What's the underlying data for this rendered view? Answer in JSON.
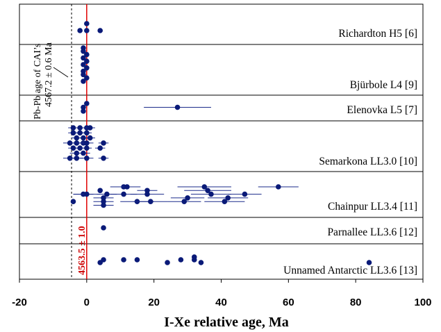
{
  "colors": {
    "points": "#0a1a78",
    "errorbars": "#1a2a8a",
    "refline": "#e00000",
    "divider": "#000000"
  },
  "chart_data": {
    "type": "scatter",
    "title": "",
    "xlabel": "I-Xe  relative age, Ma",
    "ylabel": "",
    "xlim": [
      -20,
      100
    ],
    "xticks": [
      -20,
      0,
      20,
      40,
      60,
      80,
      100
    ],
    "xtick_labels": [
      "-20",
      "0",
      "20",
      "40",
      "60",
      "80",
      "100"
    ],
    "grid": false,
    "reference_lines": [
      {
        "x": -4.5,
        "style": "dashed",
        "label_line1": "Pb-Pb age of CAI’s",
        "label_line2": "4567.2 ± 0.6 Ma"
      },
      {
        "x": 0,
        "style": "solid",
        "label": "4563.5 ± 1.0"
      }
    ],
    "series": [
      {
        "name": "Richardton H5 [6]",
        "points": [
          {
            "x": 0,
            "y": 1,
            "err": 0
          },
          {
            "x": -2,
            "y": 2,
            "err": 0
          },
          {
            "x": 0,
            "y": 2,
            "err": 0
          },
          {
            "x": 4,
            "y": 2,
            "err": 0
          }
        ]
      },
      {
        "name": "Bjürbole  L4 [9]",
        "points": [
          {
            "x": -1,
            "y": 1,
            "err": 0
          },
          {
            "x": -1,
            "y": 2,
            "err": 0
          },
          {
            "x": 0,
            "y": 3,
            "err": 0
          },
          {
            "x": -1,
            "y": 4,
            "err": 0
          },
          {
            "x": 0,
            "y": 5,
            "err": 0
          },
          {
            "x": -1,
            "y": 6,
            "err": 0
          },
          {
            "x": 0,
            "y": 7,
            "err": 0
          },
          {
            "x": -1,
            "y": 8,
            "err": 0
          },
          {
            "x": -1,
            "y": 9,
            "err": 0
          },
          {
            "x": 0,
            "y": 10,
            "err": 0
          },
          {
            "x": -1,
            "y": 11,
            "err": 0
          }
        ]
      },
      {
        "name": "Elenovka L5 [7]",
        "points": [
          {
            "x": 0,
            "y": 1,
            "err": 0
          },
          {
            "x": -1,
            "y": 2,
            "err": 0
          },
          {
            "x": 27,
            "y": 2,
            "err": 10
          },
          {
            "x": -1,
            "y": 3,
            "err": 0
          }
        ]
      },
      {
        "name": "Semarkona LL3.0 [10]",
        "points": [
          {
            "x": -4,
            "y": 1,
            "err": 1.5
          },
          {
            "x": -2,
            "y": 1,
            "err": 1.5
          },
          {
            "x": 0,
            "y": 1,
            "err": 1.5
          },
          {
            "x": 1,
            "y": 1,
            "err": 1.5
          },
          {
            "x": -4,
            "y": 2,
            "err": 1.5
          },
          {
            "x": -2,
            "y": 2,
            "err": 1.5
          },
          {
            "x": 0,
            "y": 2,
            "err": 1.5
          },
          {
            "x": -3,
            "y": 3,
            "err": 1.5
          },
          {
            "x": -1,
            "y": 3,
            "err": 1.5
          },
          {
            "x": 1,
            "y": 3,
            "err": 1.5
          },
          {
            "x": -5,
            "y": 4,
            "err": 2
          },
          {
            "x": -3,
            "y": 4,
            "err": 2
          },
          {
            "x": -1,
            "y": 4,
            "err": 2
          },
          {
            "x": 0,
            "y": 4,
            "err": 2
          },
          {
            "x": 5,
            "y": 4,
            "err": 1.5
          },
          {
            "x": -4,
            "y": 5,
            "err": 1.5
          },
          {
            "x": -2,
            "y": 5,
            "err": 1.5
          },
          {
            "x": 0,
            "y": 5,
            "err": 1.5
          },
          {
            "x": 4,
            "y": 5,
            "err": 1.5
          },
          {
            "x": -3,
            "y": 6,
            "err": 2
          },
          {
            "x": -1,
            "y": 6,
            "err": 2
          },
          {
            "x": -5,
            "y": 7,
            "err": 2
          },
          {
            "x": -3,
            "y": 7,
            "err": 2
          },
          {
            "x": 0,
            "y": 7,
            "err": 2
          },
          {
            "x": 5,
            "y": 7,
            "err": 1.5
          }
        ]
      },
      {
        "name": "Chainpur LL3.4 [11]",
        "points": [
          {
            "x": 11,
            "y": 1,
            "err": 4
          },
          {
            "x": 12,
            "y": 1,
            "err": 4
          },
          {
            "x": 35,
            "y": 1,
            "err": 8
          },
          {
            "x": 57,
            "y": 1,
            "err": 6
          },
          {
            "x": 4,
            "y": 2,
            "err": 0
          },
          {
            "x": 18,
            "y": 2,
            "err": 3
          },
          {
            "x": 36,
            "y": 2,
            "err": 7
          },
          {
            "x": -1,
            "y": 3,
            "err": 3
          },
          {
            "x": 0,
            "y": 3,
            "err": 4
          },
          {
            "x": 6,
            "y": 3,
            "err": 3
          },
          {
            "x": 11,
            "y": 3,
            "err": 4
          },
          {
            "x": 18,
            "y": 3,
            "err": 5
          },
          {
            "x": 37,
            "y": 3,
            "err": 6
          },
          {
            "x": 47,
            "y": 3,
            "err": 5
          },
          {
            "x": 5,
            "y": 4,
            "err": 3
          },
          {
            "x": 42,
            "y": 4,
            "err": 6
          },
          {
            "x": 30,
            "y": 4,
            "err": 5
          },
          {
            "x": -4,
            "y": 5,
            "err": 0
          },
          {
            "x": 5,
            "y": 5,
            "err": 3
          },
          {
            "x": 15,
            "y": 5,
            "err": 5
          },
          {
            "x": 19,
            "y": 5,
            "err": 5
          },
          {
            "x": 29,
            "y": 5,
            "err": 5
          },
          {
            "x": 41,
            "y": 5,
            "err": 6
          },
          {
            "x": 5,
            "y": 6,
            "err": 3
          }
        ]
      },
      {
        "name": "Parnallee LL3.6 [12]",
        "points": [
          {
            "x": 5,
            "y": 1,
            "err": 0
          }
        ]
      },
      {
        "name": "Unnamed Antarctic LL3.6 [13]",
        "points": [
          {
            "x": 32,
            "y": 1,
            "err": 0
          },
          {
            "x": 5,
            "y": 2,
            "err": 0
          },
          {
            "x": 11,
            "y": 2,
            "err": 0
          },
          {
            "x": 15,
            "y": 2,
            "err": 0
          },
          {
            "x": 28,
            "y": 2,
            "err": 0
          },
          {
            "x": 32,
            "y": 2,
            "err": 0
          },
          {
            "x": 4,
            "y": 3,
            "err": 0
          },
          {
            "x": 24,
            "y": 3,
            "err": 0
          },
          {
            "x": 34,
            "y": 3,
            "err": 0
          },
          {
            "x": 84,
            "y": 3,
            "err": 0
          }
        ]
      }
    ]
  }
}
